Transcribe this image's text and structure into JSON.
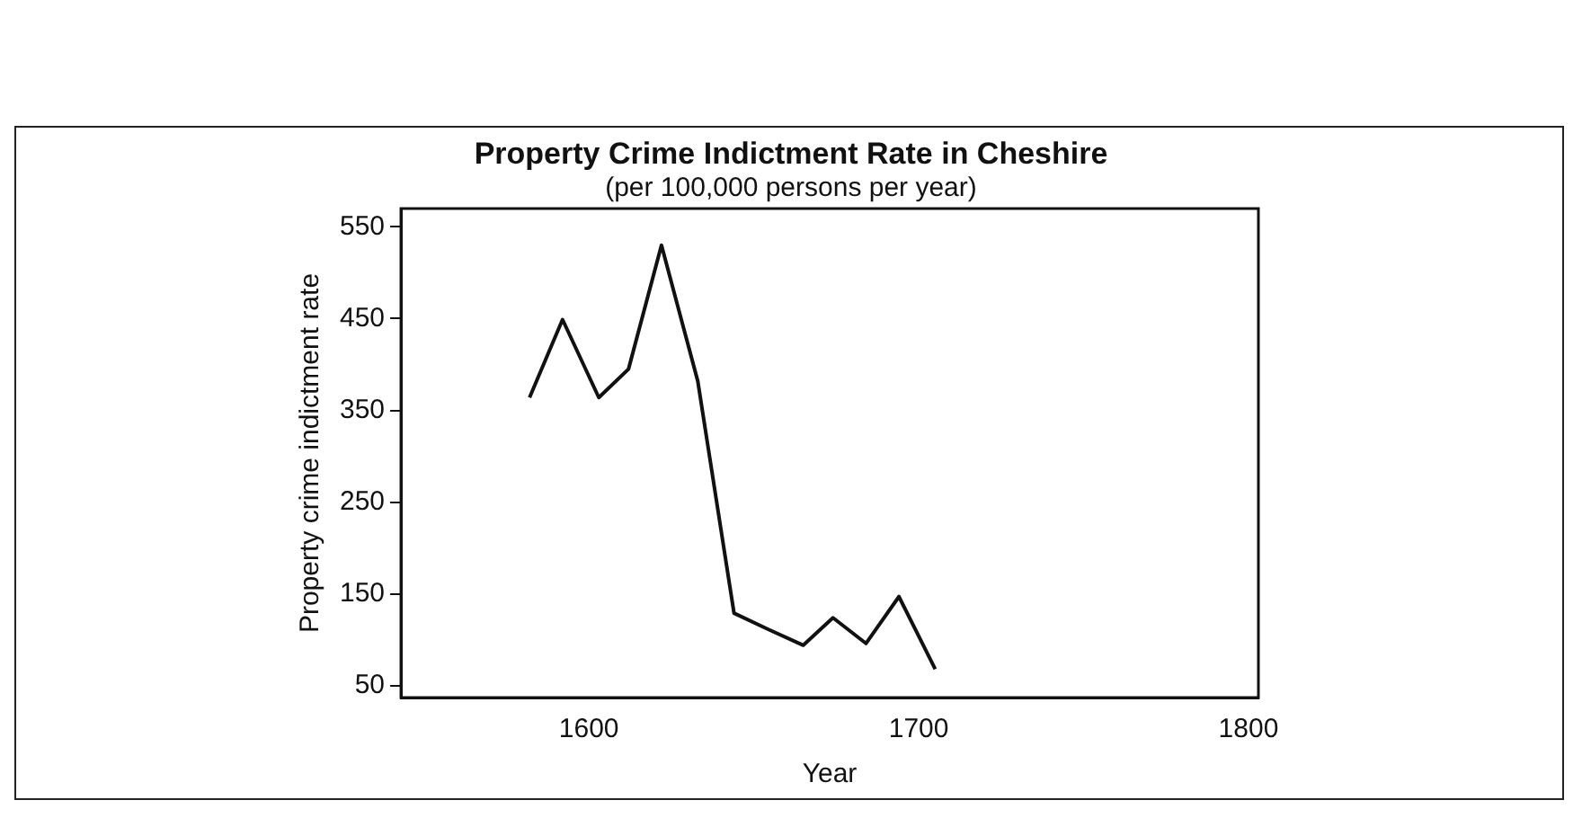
{
  "chart_data": {
    "type": "line",
    "title": "Property Crime Indictment Rate in Cheshire",
    "subtitle": "(per 100,000 persons per year)",
    "xlabel": "Year",
    "ylabel": "Property crime indictment rate",
    "x": [
      1582,
      1592,
      1603,
      1612,
      1622,
      1633,
      1644,
      1654,
      1665,
      1674,
      1684,
      1694,
      1705
    ],
    "series": [
      {
        "color": "#111111",
        "values": [
          364,
          449,
          364,
          395,
          530,
          382,
          129,
          112,
          94,
          124,
          96,
          147,
          68
        ]
      }
    ],
    "xlim": [
      1543,
      1803
    ],
    "xticks": [
      1600,
      1700,
      1800
    ],
    "ylim": [
      37,
      570
    ],
    "yticks": [
      50,
      150,
      250,
      350,
      450,
      550
    ],
    "grid": false,
    "legend": false,
    "marker": "none",
    "line_style": "solid"
  }
}
